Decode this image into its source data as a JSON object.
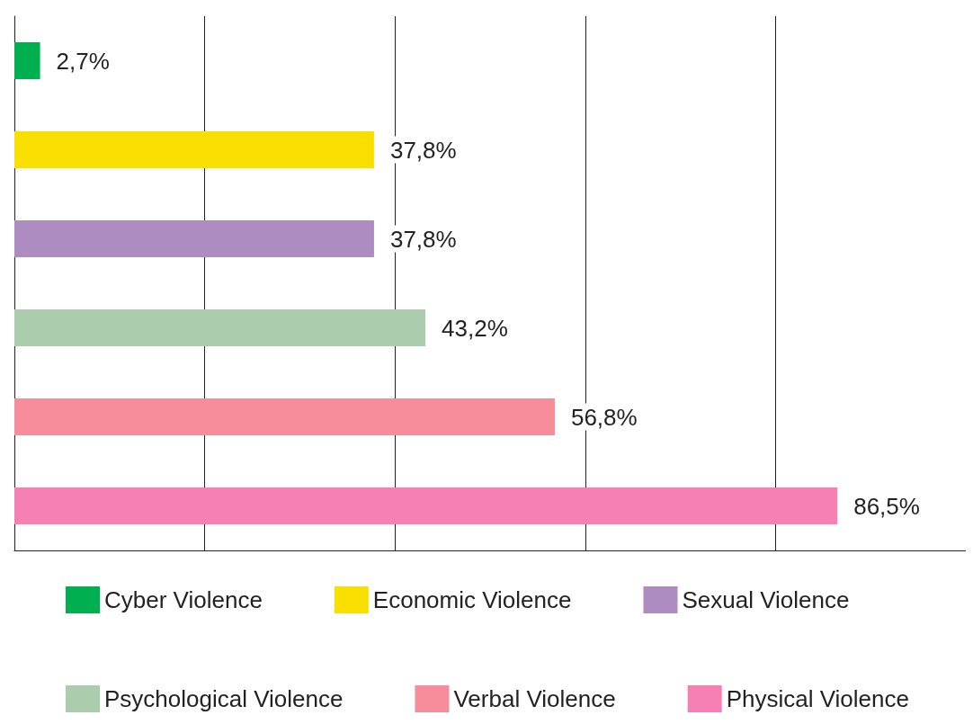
{
  "chart_data": {
    "type": "bar",
    "orientation": "horizontal",
    "stacked": true,
    "categories": [
      null,
      null,
      null,
      null,
      null,
      null
    ],
    "series": [
      {
        "name": "Cyber Violence",
        "color": "#00b050",
        "values": [
          2.7,
          null,
          null,
          null,
          null,
          null
        ],
        "value_labels": [
          "2,7%",
          null,
          null,
          null,
          null,
          null
        ]
      },
      {
        "name": "Economic Violence",
        "color": "#f9df00",
        "values": [
          null,
          37.8,
          null,
          null,
          null,
          null
        ],
        "value_labels": [
          null,
          "37,8%",
          null,
          null,
          null,
          null
        ]
      },
      {
        "name": "Sexual Violence",
        "color": "#ae8bc1",
        "values": [
          null,
          null,
          37.8,
          null,
          null,
          null
        ],
        "value_labels": [
          null,
          null,
          "37,8%",
          null,
          null,
          null
        ]
      },
      {
        "name": "Psychological Violence",
        "color": "#abcdad",
        "values": [
          null,
          null,
          null,
          43.2,
          null,
          null
        ],
        "value_labels": [
          null,
          null,
          null,
          "43,2%",
          null,
          null
        ]
      },
      {
        "name": "Verbal Violence",
        "color": "#f78c9a",
        "values": [
          null,
          null,
          null,
          null,
          56.8,
          null
        ],
        "value_labels": [
          null,
          null,
          null,
          null,
          "56,8%",
          null
        ]
      },
      {
        "name": "Physical Violence",
        "color": "#f680b4",
        "values": [
          null,
          null,
          null,
          null,
          null,
          86.5
        ],
        "value_labels": [
          null,
          null,
          null,
          null,
          null,
          "86,5%"
        ]
      }
    ],
    "grid": "x",
    "tick_labels": false,
    "legend": "bottom"
  }
}
